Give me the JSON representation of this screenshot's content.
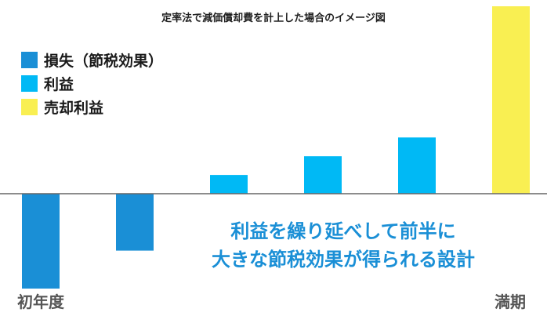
{
  "chart_data": {
    "type": "bar",
    "title": "定率法で減価償却費を計上した場合のイメージ図",
    "categories": [
      "初年度",
      "",
      "",
      "",
      "",
      "満期"
    ],
    "x_labels_shown": [
      "初年度",
      "満期"
    ],
    "legend": [
      {
        "name": "損失（節税効果）",
        "color": "#1a8fd6"
      },
      {
        "name": "利益",
        "color": "#00b9f5"
      },
      {
        "name": "売却利益",
        "color": "#f9ef52"
      }
    ],
    "series": [
      {
        "name": "損失（節税効果）",
        "color": "#1a8fd6",
        "values": [
          -5,
          -3,
          null,
          null,
          null,
          null
        ]
      },
      {
        "name": "利益",
        "color": "#00b9f5",
        "values": [
          null,
          null,
          1,
          2,
          3,
          null
        ]
      },
      {
        "name": "売却利益",
        "color": "#f9ef52",
        "values": [
          null,
          null,
          null,
          null,
          null,
          10
        ]
      }
    ],
    "ylim": [
      -5,
      10
    ],
    "grid": false,
    "legend_position": "top-left",
    "annotation": [
      "利益を繰り延べして前半に",
      "大きな節税効果が得られる設計"
    ]
  }
}
